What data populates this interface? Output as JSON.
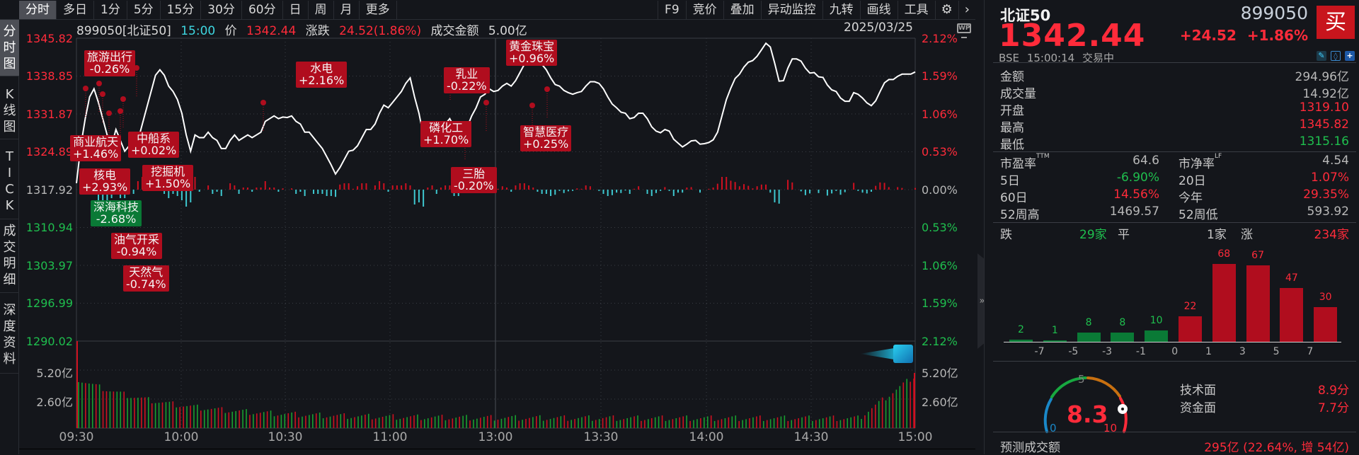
{
  "toolbar": {
    "tabs": [
      "分时",
      "多日",
      "1分",
      "5分",
      "15分",
      "30分",
      "60分",
      "日",
      "周",
      "月",
      "更多"
    ],
    "active_tab": "分时",
    "right_tools": [
      "F9",
      "竞价",
      "叠加",
      "异动监控",
      "九转",
      "画线",
      "工具"
    ],
    "settings_icon": "gear-icon",
    "more_icon": "chevron-right-icon"
  },
  "leftnav": {
    "items": [
      "分时图",
      "K线图",
      "TICK",
      "成交明细",
      "深度资料"
    ],
    "active": "分时图"
  },
  "infoline": {
    "code_name": "899050[北证50]",
    "time": "15:00",
    "price_label": "价",
    "price": "1342.44",
    "change_label": "涨跌",
    "change": "24.52(1.86%)",
    "amount_label": "成交金额",
    "amount": "5.00亿",
    "date": "2025/03/25",
    "wp_icon": "WP"
  },
  "chart_data": {
    "type": "line",
    "title": "899050 北证50 分时图",
    "x_ticks": [
      "09:30",
      "10:00",
      "10:30",
      "11:00",
      "13:00",
      "13:30",
      "14:00",
      "14:30",
      "15:00"
    ],
    "y_left_ticks": [
      "1345.82",
      "1338.85",
      "1331.87",
      "1324.89",
      "1317.92",
      "1310.94",
      "1303.97",
      "1296.99",
      "1290.02"
    ],
    "y_right_ticks": [
      "2.12%",
      "1.59%",
      "1.06%",
      "0.53%",
      "0.00%",
      "0.53%",
      "1.06%",
      "1.59%",
      "2.12%"
    ],
    "prev_close": 1317.92,
    "ylim": [
      1290.02,
      1345.82
    ],
    "price_series": [
      1319.1,
      1326,
      1331,
      1335,
      1336.5,
      1334,
      1331,
      1328,
      1326,
      1329,
      1327,
      1325,
      1326,
      1325,
      1327,
      1330,
      1333,
      1336,
      1339,
      1340,
      1339,
      1337,
      1336,
      1334.5,
      1332,
      1328,
      1325,
      1328,
      1327.5,
      1327.5,
      1328.5,
      1327.5,
      1327,
      1325.5,
      1325.5,
      1327,
      1328,
      1327,
      1327.5,
      1328,
      1327.5,
      1328,
      1328.5,
      1330.5,
      1331,
      1331.5,
      1331,
      1331.3,
      1331.2,
      1331.5,
      1330.5,
      1330,
      1328.5,
      1328.5,
      1327.5,
      1326.5,
      1325.5,
      1324,
      1322.5,
      1320.8,
      1322,
      1323.5,
      1325,
      1325.2,
      1326,
      1327.5,
      1329,
      1329,
      1330,
      1332,
      1333.5,
      1333,
      1334,
      1335,
      1336,
      1337.5,
      1338.5,
      1335,
      1332,
      1328,
      1328.5,
      1329.5,
      1328.5,
      1329,
      1330,
      1331,
      1329.5,
      1328,
      1328.5,
      1329.5,
      1331.5,
      1333,
      1335,
      1335.5,
      1336.5,
      1336,
      1336.2,
      1337,
      1337.5,
      1337,
      1338,
      1339.5,
      1341,
      1342,
      1342.5,
      1342,
      1341,
      1340,
      1338.5,
      1337.3,
      1337,
      1336.2,
      1335.8,
      1335.5,
      1335.8,
      1336,
      1337,
      1337.8,
      1337.8,
      1337.5,
      1336.5,
      1335,
      1333.7,
      1333,
      1332.2,
      1332,
      1331,
      1331.2,
      1332,
      1332,
      1331,
      1329.5,
      1328.7,
      1328.4,
      1329,
      1328.7,
      1327.2,
      1326.5,
      1325.8,
      1326.3,
      1326.9,
      1327,
      1326.3,
      1326.4,
      1326.6,
      1327.1,
      1328.5,
      1331.5,
      1334.5,
      1336.6,
      1338.4,
      1339.2,
      1340.5,
      1341.4,
      1341.7,
      1342.5,
      1343.7,
      1344.9,
      1344.2,
      1341.2,
      1337.9,
      1338.0,
      1340.3,
      1342.0,
      1342.0,
      1341.6,
      1340.3,
      1339.4,
      1339.5,
      1338.7,
      1338.6,
      1337.2,
      1336.3,
      1336.0,
      1334.8,
      1334.2,
      1334.2,
      1335.8,
      1335.5,
      1334.8,
      1333.9,
      1333.4,
      1334.3,
      1336.0,
      1337.6,
      1338.2,
      1338.2,
      1338.8,
      1339.2,
      1339.2,
      1339.2,
      1339.6
    ],
    "volume_axis": [
      "5.20亿",
      "2.60亿"
    ],
    "volume_note": "red = up minute, green = down minute"
  },
  "annotations": [
    {
      "name": "旅游出行",
      "pct": "-0.26%",
      "color": "red"
    },
    {
      "name": "商业航天",
      "pct": "+1.46%",
      "color": "red"
    },
    {
      "name": "中船系",
      "pct": "+0.02%",
      "color": "red"
    },
    {
      "name": "核电",
      "pct": "+2.93%",
      "color": "red"
    },
    {
      "name": "挖掘机",
      "pct": "+1.50%",
      "color": "red"
    },
    {
      "name": "深海科技",
      "pct": "-2.68%",
      "color": "green"
    },
    {
      "name": "油气开采",
      "pct": "-0.94%",
      "color": "red"
    },
    {
      "name": "天然气",
      "pct": "-0.74%",
      "color": "red"
    },
    {
      "name": "水电",
      "pct": "+2.16%",
      "color": "red"
    },
    {
      "name": "乳业",
      "pct": "-0.22%",
      "color": "red"
    },
    {
      "name": "磷化工",
      "pct": "+1.70%",
      "color": "red"
    },
    {
      "name": "三胎",
      "pct": "-0.20%",
      "color": "red"
    },
    {
      "name": "黄金珠宝",
      "pct": "+0.96%",
      "color": "red"
    },
    {
      "name": "智慧医疗",
      "pct": "+0.25%",
      "color": "red"
    }
  ],
  "quote": {
    "name": "北证50",
    "code": "899050",
    "price": "1342.44",
    "change": "+24.52",
    "change_pct": "+1.86%",
    "buy_label": "买",
    "exchange": "BSE",
    "time": "15:00:14",
    "status": "交易中",
    "icons": [
      "edit-icon",
      "bell-icon",
      "plus-icon"
    ]
  },
  "stats": [
    {
      "label": "金额",
      "value": "294.96亿",
      "color": "gray"
    },
    {
      "label": "成交量",
      "value": "14.92亿",
      "color": "gray"
    },
    {
      "label": "开盘",
      "value": "1319.10",
      "color": "red"
    },
    {
      "label": "最高",
      "value": "1345.82",
      "color": "red"
    },
    {
      "label": "最低",
      "value": "1315.16",
      "color": "green"
    }
  ],
  "stats2": [
    {
      "l1": "市盈率",
      "s1": "TTM",
      "v1": "64.6",
      "c1": "gray",
      "l2": "市净率",
      "s2": "LF",
      "v2": "4.54",
      "c2": "gray"
    },
    {
      "l1": "5日",
      "s1": "",
      "v1": "-6.90%",
      "c1": "green",
      "l2": "20日",
      "s2": "",
      "v2": "1.07%",
      "c2": "red"
    },
    {
      "l1": "60日",
      "s1": "",
      "v1": "14.56%",
      "c1": "red",
      "l2": "今年",
      "s2": "",
      "v2": "29.35%",
      "c2": "red"
    },
    {
      "l1": "52周高",
      "s1": "",
      "v1": "1469.57",
      "c1": "gray",
      "l2": "52周低",
      "s2": "",
      "v2": "593.92",
      "c2": "gray"
    }
  ],
  "breadth": {
    "down_label": "跌",
    "down": "29家",
    "flat_label": "平",
    "flat": "1家",
    "up_label": "涨",
    "up": "234家"
  },
  "distribution": {
    "ticks": [
      "-7",
      "-5",
      "-3",
      "-1",
      "0",
      "1",
      "3",
      "5",
      "7"
    ],
    "bars": [
      {
        "value": 2,
        "color": "green"
      },
      {
        "value": 1,
        "color": "green"
      },
      {
        "value": 8,
        "color": "green"
      },
      {
        "value": 8,
        "color": "green"
      },
      {
        "value": 10,
        "color": "green"
      },
      {
        "value": 22,
        "color": "red"
      },
      {
        "value": 68,
        "color": "red"
      },
      {
        "value": 67,
        "color": "red"
      },
      {
        "value": 47,
        "color": "red"
      },
      {
        "value": 30,
        "color": "red"
      }
    ]
  },
  "gauge": {
    "score": "8.3",
    "min": "0",
    "mid": "5",
    "max": "10",
    "tech_label": "技术面",
    "tech": "8.9分",
    "fund_label": "资金面",
    "fund": "7.7分"
  },
  "forecast": {
    "label": "预测成交额",
    "value": "295亿 (22.64%, 增 54亿)"
  },
  "colors": {
    "up": "#ff2b3a",
    "down": "#1fbf4e",
    "bg": "#14161b",
    "annotation_red": "#b00d1e",
    "annotation_green": "#0a7a36"
  }
}
